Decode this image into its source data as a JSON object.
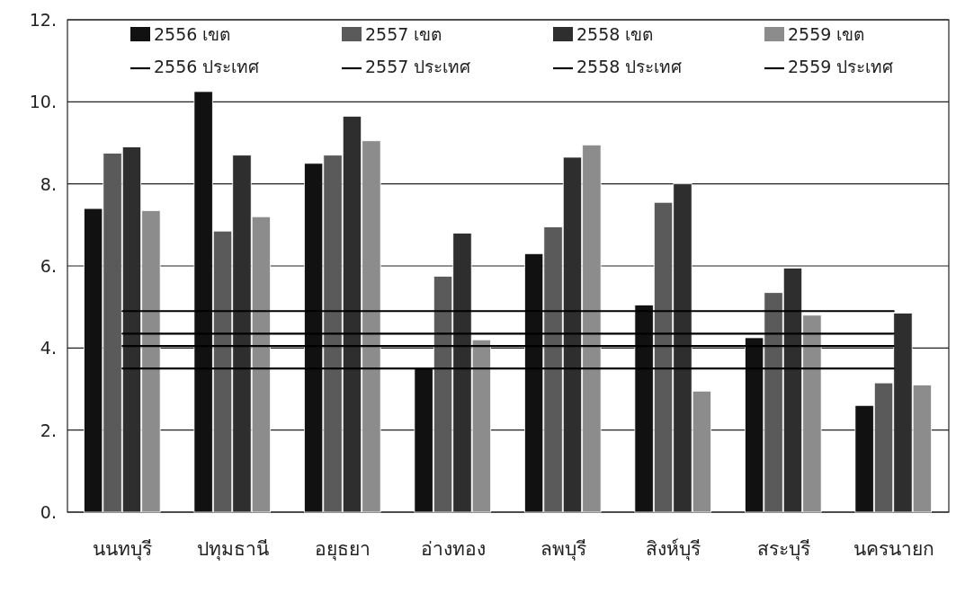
{
  "chart_data": {
    "type": "bar",
    "categories": [
      "นนทบุรี",
      "ปทุมธานี",
      "อยุธยา",
      "อ่างทอง",
      "ลพบุรี",
      "สิงห์บุรี",
      "สระบุรี",
      "นครนายก"
    ],
    "series": [
      {
        "name": "2556 เขต",
        "color": "#111111",
        "values": [
          7.4,
          10.25,
          8.5,
          3.5,
          6.3,
          5.05,
          4.25,
          2.6
        ]
      },
      {
        "name": "2557 เขต",
        "color": "#5a5a5a",
        "values": [
          8.75,
          6.85,
          8.7,
          5.75,
          6.95,
          7.55,
          5.35,
          3.15
        ]
      },
      {
        "name": "2558 เขต",
        "color": "#2e2e2e",
        "values": [
          8.9,
          8.7,
          9.65,
          6.8,
          8.65,
          8.0,
          5.95,
          4.85
        ]
      },
      {
        "name": "2559 เขต",
        "color": "#8c8c8c",
        "values": [
          7.35,
          7.2,
          9.05,
          4.2,
          8.95,
          2.95,
          4.8,
          3.1
        ]
      },
      {
        "name": "2556 ประเทศ",
        "type": "line",
        "color": "#000000",
        "values": [
          4.9,
          4.9,
          4.9,
          4.9,
          4.9,
          4.9,
          4.9,
          4.9
        ]
      },
      {
        "name": "2557 ประเทศ",
        "type": "line",
        "color": "#000000",
        "values": [
          4.35,
          4.35,
          4.35,
          4.35,
          4.35,
          4.35,
          4.35,
          4.35
        ]
      },
      {
        "name": "2558 ประเทศ",
        "type": "line",
        "color": "#000000",
        "values": [
          4.05,
          4.05,
          4.05,
          4.05,
          4.05,
          4.05,
          4.05,
          4.05
        ]
      },
      {
        "name": "2559 ประเทศ",
        "type": "line",
        "color": "#000000",
        "values": [
          3.5,
          3.5,
          3.5,
          3.5,
          3.5,
          3.5,
          3.5,
          3.5
        ]
      }
    ],
    "ylim": [
      0,
      12
    ],
    "yticks": [
      {
        "value": 0,
        "label": "0."
      },
      {
        "value": 2,
        "label": "2."
      },
      {
        "value": 4,
        "label": "4."
      },
      {
        "value": 6,
        "label": "6."
      },
      {
        "value": 8,
        "label": "8."
      },
      {
        "value": 10,
        "label": "10."
      },
      {
        "value": 12,
        "label": "12."
      }
    ],
    "grid": "y",
    "legend": "top",
    "marker": "none",
    "line_style": "solid"
  }
}
